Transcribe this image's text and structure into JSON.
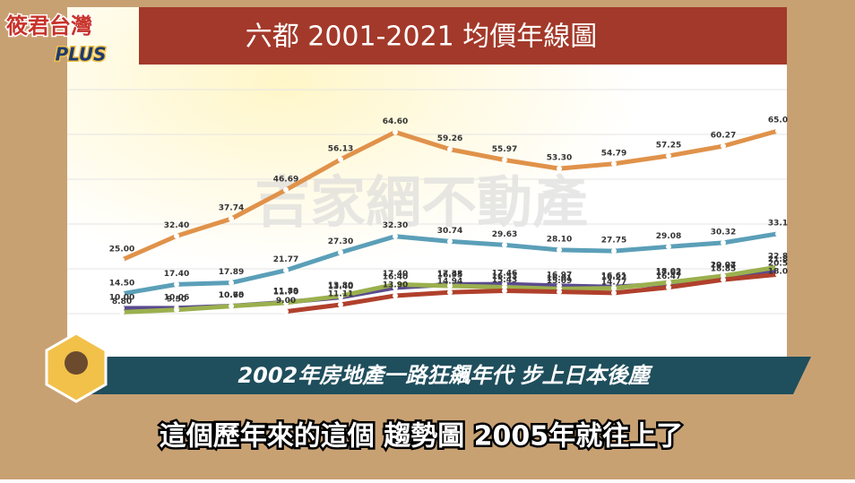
{
  "chart_data": {
    "type": "line",
    "title": "六都 2001-2021 均價年線圖",
    "watermark": "吉家網不動產",
    "categories": [
      null,
      null,
      null,
      null,
      null,
      null,
      null,
      null,
      null,
      null,
      null,
      null,
      null,
      null
    ],
    "ylim": [
      0,
      70
    ],
    "series": [
      {
        "name": null,
        "color": "#e0924a",
        "values": [
          null,
          25.0,
          32.4,
          37.74,
          46.69,
          56.13,
          64.6,
          59.26,
          55.97,
          53.3,
          54.79,
          57.25,
          60.27,
          65.0
        ],
        "value_labels": [
          null,
          "25.00",
          "32.40",
          "37.74",
          "46.69",
          "56.13",
          "64.60",
          "59.26",
          "55.97",
          "53.30",
          "54.79",
          "57.25",
          "60.27",
          "65.0"
        ]
      },
      {
        "name": null,
        "color": "#5b9fb8",
        "values": [
          null,
          14.5,
          17.4,
          17.89,
          21.77,
          27.3,
          32.3,
          30.74,
          29.63,
          28.1,
          27.75,
          29.08,
          30.32,
          33.1
        ],
        "value_labels": [
          null,
          "14.50",
          "17.40",
          "17.89",
          "21.77",
          "27.30",
          "32.30",
          "30.74",
          "29.63",
          "28.10",
          "27.75",
          "29.08",
          "30.32",
          "33.1"
        ]
      },
      {
        "name": null,
        "color": "#5a4a8e",
        "values": [
          null,
          10.0,
          10.06,
          10.7,
          11.89,
          13.4,
          16.4,
          17.38,
          17.46,
          16.97,
          16.61,
          17.62,
          19.97,
          21.8
        ],
        "value_labels": [
          null,
          "10.00",
          "10.06",
          "10.70",
          "11.89",
          "13.40",
          "16.40",
          "17.38",
          "17.46",
          "16.97",
          "16.61",
          "17.62",
          "19.97",
          "21.8"
        ]
      },
      {
        "name": null,
        "color": "#9bb04e",
        "values": [
          null,
          8.8,
          9.5,
          10.65,
          11.7,
          13.8,
          17.4,
          16.95,
          16.53,
          16.01,
          16.22,
          18.02,
          20.04,
          22.8
        ],
        "value_labels": [
          null,
          "8.80",
          "9.50",
          "10.65",
          "11.70",
          "13.80",
          "17.40",
          "16.95",
          "16.53",
          "16.01",
          "16.22",
          "18.02",
          "20.04",
          "22.8"
        ]
      },
      {
        "name": null,
        "color": "#b0402c",
        "values": [
          null,
          null,
          null,
          null,
          9.0,
          11.11,
          13.9,
          14.94,
          15.43,
          15.09,
          14.77,
          16.47,
          18.85,
          20.5
        ],
        "value_labels": [
          null,
          null,
          null,
          null,
          "9.00",
          "11.11",
          "13.90",
          "14.94",
          "15.43",
          "15.09",
          "14.77",
          "16.47",
          "18.85",
          "20.5"
        ]
      },
      {
        "name": null,
        "color": "#4a70a8",
        "values": [
          null,
          null,
          null,
          null,
          null,
          null,
          null,
          null,
          null,
          null,
          null,
          null,
          null,
          18.0
        ],
        "value_labels": [
          null,
          null,
          null,
          null,
          null,
          null,
          null,
          null,
          null,
          null,
          null,
          null,
          null,
          "18.0"
        ]
      }
    ]
  },
  "overlay": {
    "logo_top": "筱君台灣",
    "logo_bottom": "PLUS",
    "banner": "2002年房地產一路狂飆年代  步上日本後塵",
    "subtitle": "這個歷年來的這個 趨勢圖 2005年就往上了"
  }
}
